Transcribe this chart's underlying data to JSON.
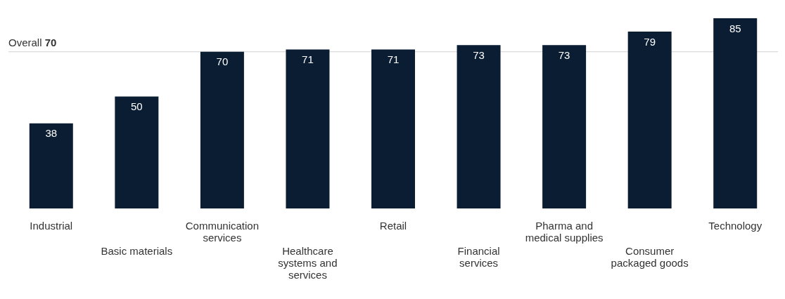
{
  "chart_data": {
    "type": "bar",
    "categories": [
      "Industrial",
      "Basic materials",
      "Communication services",
      "Healthcare systems and services",
      "Retail",
      "Financial services",
      "Pharma and medical supplies",
      "Consumer packaged goods",
      "Technology"
    ],
    "values": [
      38,
      50,
      70,
      71,
      71,
      73,
      73,
      79,
      85
    ],
    "color": "#0b1d33",
    "data_labels": true,
    "ref_lines": [
      {
        "axis": "y",
        "value": 70,
        "label": "Overall 70",
        "color": "#d0d0d0"
      }
    ],
    "legend": false
  }
}
